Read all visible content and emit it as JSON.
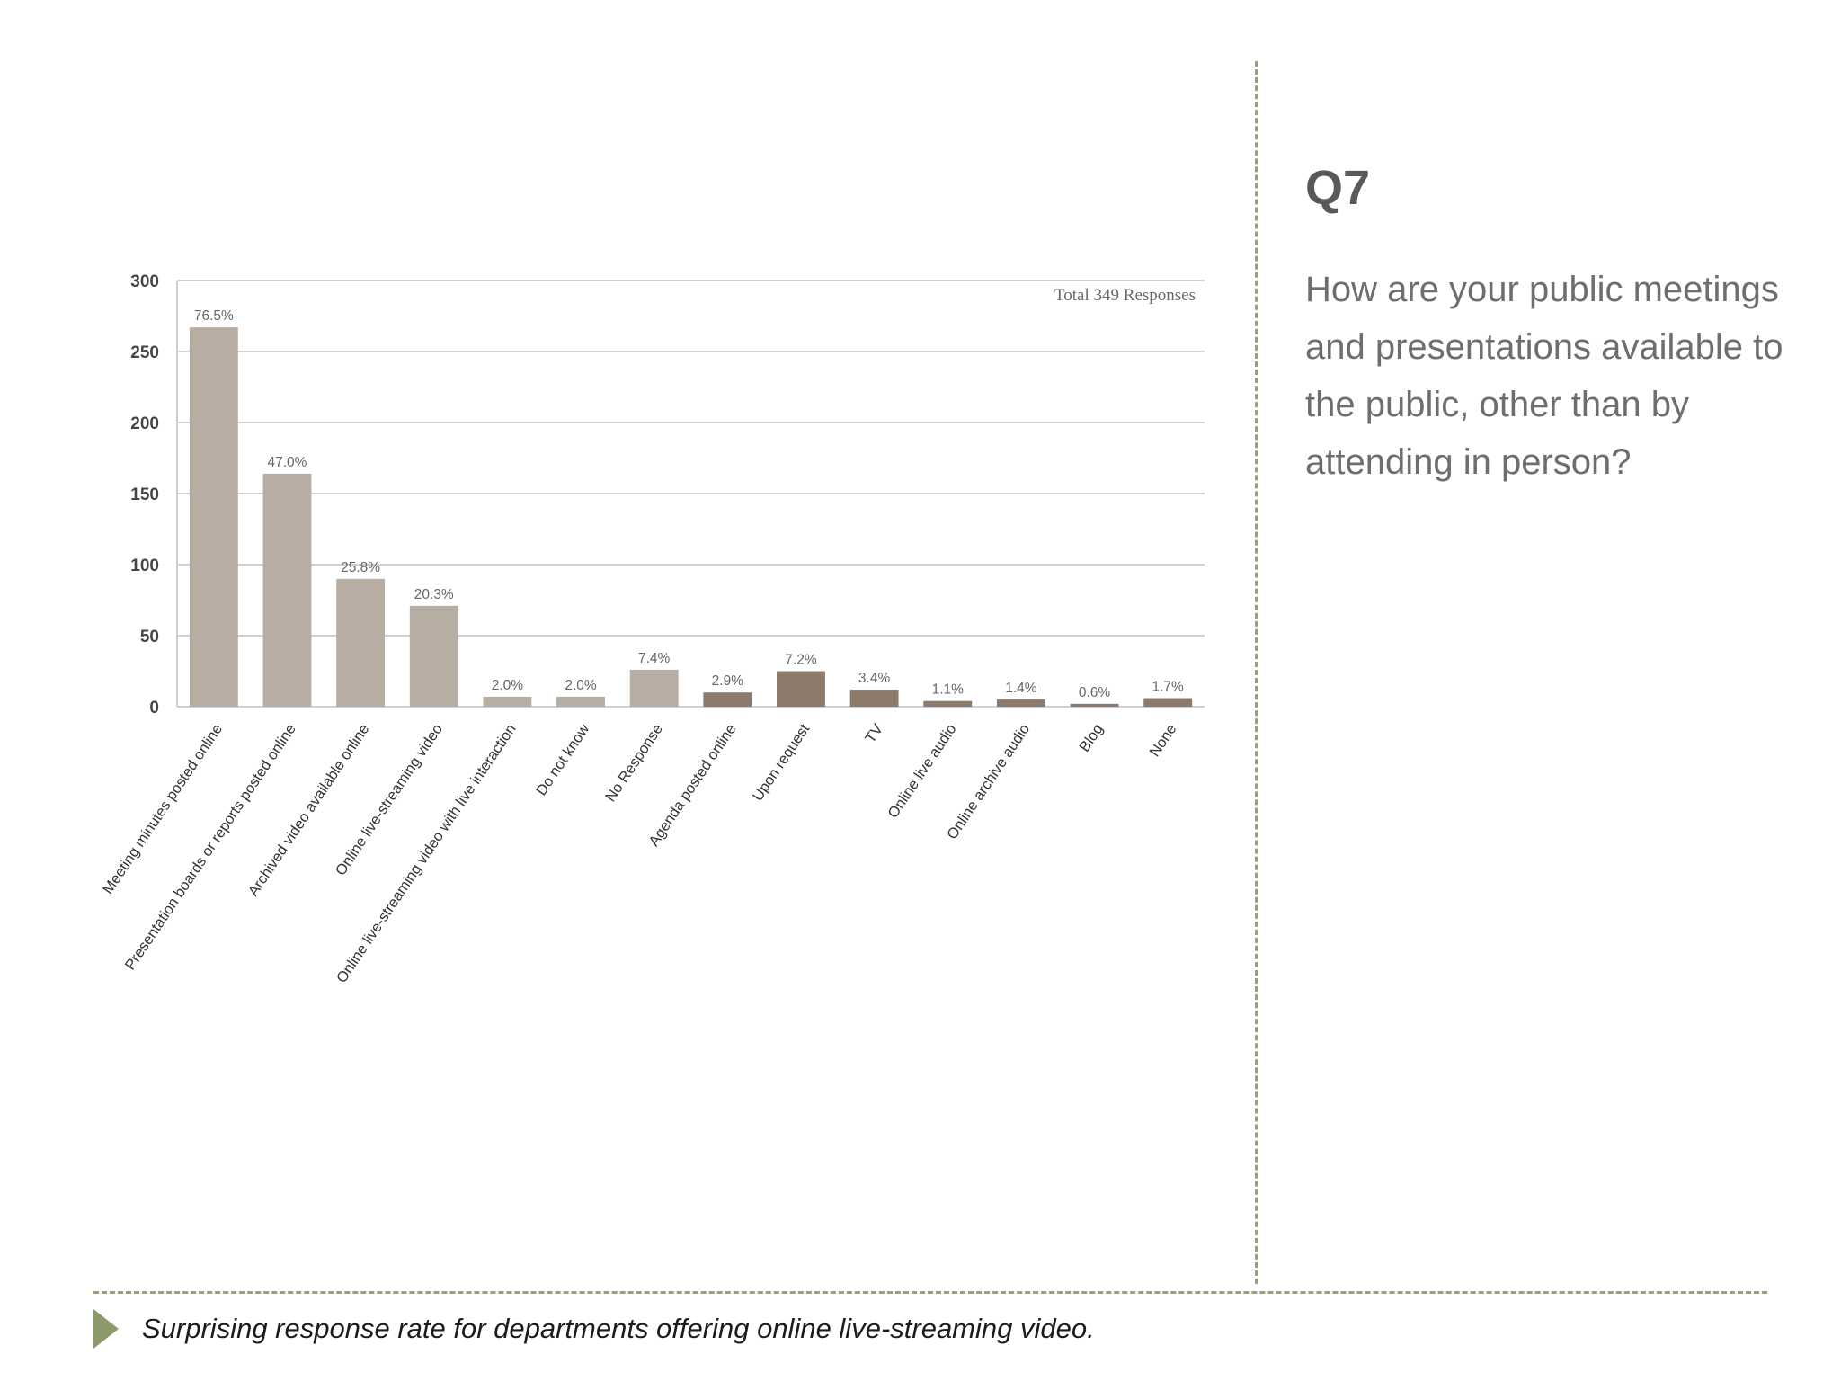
{
  "question": {
    "number": "Q7",
    "text": "How are your public meetings and presentations available to the public, other than by attending in person?"
  },
  "footer": {
    "note": "Surprising response rate for departments offering online live-streaming video."
  },
  "colors": {
    "bar_light": "#b8ada3",
    "bar_dark": "#8c7b6b",
    "grid": "#cfcfd6",
    "divider": "#9a9e84",
    "arrow": "#8c9a6a"
  },
  "chart_data": {
    "type": "bar",
    "title": "",
    "xlabel": "",
    "ylabel": "",
    "annotation": "Total 349 Responses",
    "ylim": [
      0,
      300
    ],
    "yticks": [
      0,
      50,
      100,
      150,
      200,
      250,
      300
    ],
    "grid": true,
    "categories": [
      "Meeting minutes posted online",
      "Presentation boards or reports posted online",
      "Archived video available online",
      "Online live-streaming video",
      "Online live-streaming video with live interaction",
      "Do not know",
      "No Response",
      "Agenda posted online",
      "Upon request",
      "TV",
      "Online live audio",
      "Online archive audio",
      "Blog",
      "None"
    ],
    "values": [
      267,
      164,
      90,
      71,
      7,
      7,
      26,
      10,
      25,
      12,
      4,
      5,
      2,
      6
    ],
    "data_labels": [
      "76.5%",
      "47.0%",
      "25.8%",
      "20.3%",
      "2.0%",
      "2.0%",
      "7.4%",
      "2.9%",
      "7.2%",
      "3.4%",
      "1.1%",
      "1.4%",
      "0.6%",
      "1.7%"
    ],
    "bar_colors": [
      "#b8ada3",
      "#b8ada3",
      "#b8ada3",
      "#b8ada3",
      "#b8ada3",
      "#b8ada3",
      "#b8ada3",
      "#8c7b6b",
      "#8c7b6b",
      "#8c7b6b",
      "#8c7b6b",
      "#8c7b6b",
      "#8c7b6b",
      "#8c7b6b"
    ]
  }
}
